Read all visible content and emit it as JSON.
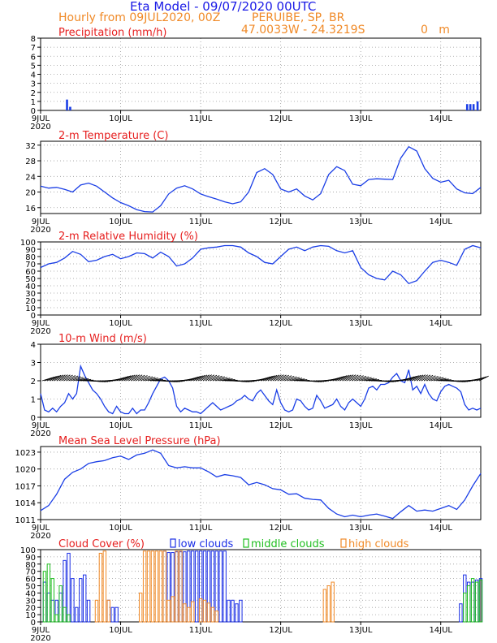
{
  "header": {
    "title": "Eta Model - 09/07/2020 00UTC",
    "subtitle": "Hourly from 09JUL2020, 00Z",
    "location": "PERUIBE, SP, BR",
    "coords": "47.0033W - 24.3219S",
    "elevation": "0   m"
  },
  "colors": {
    "title": "#1a1ae6",
    "subtitle": "#f08a28",
    "panel_title": "#e61e1e",
    "series": "#1a3ee6",
    "low": "#1a2ee6",
    "middle": "#1fbe1f",
    "high": "#f08a28",
    "wind_barb": "#000000"
  },
  "x_axis": {
    "ticks": [
      {
        "day": 0,
        "label": "9JUL",
        "sub": "2020"
      },
      {
        "day": 1,
        "label": "10JUL",
        "sub": ""
      },
      {
        "day": 2,
        "label": "11JUL",
        "sub": ""
      },
      {
        "day": 3,
        "label": "12JUL",
        "sub": ""
      },
      {
        "day": 4,
        "label": "13JUL",
        "sub": ""
      },
      {
        "day": 5,
        "label": "14JUL",
        "sub": ""
      }
    ],
    "range_days": [
      0,
      5.5
    ]
  },
  "chart_data": [
    {
      "type": "bar",
      "title": "Precipitation (mm/h)",
      "ylim": [
        0,
        8
      ],
      "yticks": [
        0,
        1,
        2,
        3,
        4,
        5,
        6,
        7,
        8
      ],
      "series": [
        {
          "x": [
            0.33,
            0.37,
            5.33,
            5.37,
            5.41,
            5.46
          ],
          "values": [
            1.2,
            0.4,
            0.7,
            0.7,
            0.7,
            1.0
          ]
        }
      ]
    },
    {
      "type": "line",
      "title": "2-m Temperature (C)",
      "ylim": [
        14.5,
        33
      ],
      "yticks": [
        16,
        20,
        24,
        28,
        32
      ],
      "series": [
        {
          "x": [
            0,
            0.1,
            0.2,
            0.3,
            0.4,
            0.5,
            0.6,
            0.7,
            0.8,
            0.9,
            1.0,
            1.1,
            1.2,
            1.3,
            1.4,
            1.5,
            1.6,
            1.7,
            1.8,
            1.9,
            2.0,
            2.1,
            2.2,
            2.3,
            2.4,
            2.5,
            2.6,
            2.7,
            2.8,
            2.9,
            3.0,
            3.1,
            3.2,
            3.3,
            3.4,
            3.5,
            3.6,
            3.7,
            3.8,
            3.9,
            4.0,
            4.1,
            4.2,
            4.3,
            4.4,
            4.5,
            4.6,
            4.7,
            4.8,
            4.9,
            5.0,
            5.1,
            5.2,
            5.3,
            5.4,
            5.5
          ],
          "values": [
            21.5,
            21.0,
            21.2,
            20.7,
            20.0,
            21.8,
            22.3,
            21.5,
            20.0,
            18.5,
            17.3,
            16.5,
            15.5,
            15.0,
            14.9,
            16.5,
            19.5,
            21.0,
            21.6,
            20.8,
            19.5,
            18.8,
            18.2,
            17.5,
            17.0,
            17.5,
            20.0,
            25.0,
            26.0,
            24.5,
            20.8,
            20.0,
            20.8,
            19.0,
            18.0,
            19.6,
            24.5,
            26.5,
            25.5,
            22.0,
            21.6,
            23.2,
            23.4,
            23.3,
            23.2,
            28.7,
            31.6,
            30.5,
            26.0,
            23.5,
            22.5,
            23.0,
            20.8,
            19.8,
            19.6,
            21.2
          ]
        }
      ]
    },
    {
      "type": "line",
      "title": "2-m Relative Humidity (%)",
      "ylim": [
        0,
        100
      ],
      "yticks": [
        0,
        10,
        20,
        30,
        40,
        50,
        60,
        70,
        80,
        90,
        100
      ],
      "series": [
        {
          "x": [
            0,
            0.1,
            0.2,
            0.3,
            0.4,
            0.5,
            0.6,
            0.7,
            0.8,
            0.9,
            1.0,
            1.1,
            1.2,
            1.3,
            1.4,
            1.5,
            1.6,
            1.7,
            1.8,
            1.9,
            2.0,
            2.1,
            2.2,
            2.3,
            2.4,
            2.5,
            2.6,
            2.7,
            2.8,
            2.9,
            3.0,
            3.1,
            3.2,
            3.3,
            3.4,
            3.5,
            3.6,
            3.7,
            3.8,
            3.9,
            4.0,
            4.1,
            4.2,
            4.3,
            4.4,
            4.5,
            4.6,
            4.7,
            4.8,
            4.9,
            5.0,
            5.1,
            5.2,
            5.3,
            5.4,
            5.5
          ],
          "values": [
            65,
            70,
            72,
            78,
            87,
            83,
            73,
            75,
            80,
            83,
            77,
            80,
            85,
            84,
            78,
            86,
            80,
            67,
            70,
            78,
            90,
            92,
            93,
            95,
            95,
            93,
            85,
            80,
            72,
            70,
            80,
            90,
            93,
            88,
            93,
            95,
            94,
            88,
            85,
            88,
            65,
            55,
            50,
            48,
            60,
            55,
            43,
            47,
            60,
            72,
            75,
            72,
            68,
            90,
            95,
            92
          ]
        }
      ]
    },
    {
      "type": "line",
      "title": "10-m Wind (m/s)",
      "ylim": [
        0,
        4
      ],
      "yticks": [
        0,
        1,
        2,
        3,
        4
      ],
      "series": [
        {
          "x": [
            0,
            0.05,
            0.1,
            0.15,
            0.2,
            0.25,
            0.3,
            0.35,
            0.4,
            0.45,
            0.5,
            0.55,
            0.6,
            0.65,
            0.7,
            0.75,
            0.8,
            0.85,
            0.9,
            0.95,
            1.0,
            1.05,
            1.1,
            1.15,
            1.2,
            1.25,
            1.3,
            1.35,
            1.4,
            1.45,
            1.5,
            1.55,
            1.6,
            1.65,
            1.7,
            1.75,
            1.8,
            1.85,
            1.9,
            1.95,
            2.0,
            2.05,
            2.1,
            2.15,
            2.2,
            2.25,
            2.3,
            2.35,
            2.4,
            2.45,
            2.5,
            2.55,
            2.6,
            2.65,
            2.7,
            2.75,
            2.8,
            2.85,
            2.9,
            2.95,
            3.0,
            3.05,
            3.1,
            3.15,
            3.2,
            3.25,
            3.3,
            3.35,
            3.4,
            3.45,
            3.5,
            3.55,
            3.6,
            3.65,
            3.7,
            3.75,
            3.8,
            3.85,
            3.9,
            3.95,
            4.0,
            4.05,
            4.1,
            4.15,
            4.2,
            4.25,
            4.3,
            4.35,
            4.4,
            4.45,
            4.5,
            4.55,
            4.6,
            4.65,
            4.7,
            4.75,
            4.8,
            4.85,
            4.9,
            4.95,
            5.0,
            5.05,
            5.1,
            5.15,
            5.2,
            5.25,
            5.3,
            5.35,
            5.4,
            5.45,
            5.5
          ],
          "values": [
            1.3,
            0.4,
            0.3,
            0.5,
            0.3,
            0.6,
            0.8,
            1.3,
            1.0,
            1.3,
            2.8,
            2.3,
            1.9,
            1.5,
            1.3,
            1.0,
            0.6,
            0.3,
            0.2,
            0.6,
            0.3,
            0.2,
            0.2,
            0.5,
            0.2,
            0.4,
            0.4,
            0.8,
            1.3,
            1.7,
            2.1,
            2.2,
            2.0,
            1.6,
            0.6,
            0.3,
            0.5,
            0.4,
            0.3,
            0.3,
            0.2,
            0.4,
            0.6,
            0.8,
            0.6,
            0.4,
            0.5,
            0.6,
            0.7,
            0.9,
            1.0,
            1.2,
            1.0,
            0.9,
            1.3,
            1.5,
            1.2,
            0.9,
            0.7,
            1.5,
            0.8,
            0.4,
            0.3,
            0.4,
            1.0,
            0.9,
            0.6,
            0.4,
            0.5,
            1.2,
            0.9,
            0.5,
            0.6,
            0.7,
            1.0,
            0.6,
            0.4,
            0.8,
            1.0,
            0.8,
            0.6,
            1.0,
            1.6,
            1.7,
            1.5,
            1.8,
            1.8,
            1.9,
            2.2,
            2.4,
            2.0,
            1.9,
            2.6,
            1.5,
            1.7,
            1.3,
            1.8,
            1.3,
            1.0,
            0.9,
            1.4,
            1.7,
            1.8,
            1.7,
            1.6,
            1.4,
            0.7,
            0.4,
            0.5,
            0.4,
            0.5
          ]
        }
      ]
    },
    {
      "type": "line",
      "title": "Mean Sea Level Pressure (hPa)",
      "ylim": [
        1011,
        1024
      ],
      "yticks": [
        1011,
        1014,
        1017,
        1020,
        1023
      ],
      "series": [
        {
          "x": [
            0,
            0.1,
            0.2,
            0.3,
            0.4,
            0.5,
            0.6,
            0.7,
            0.8,
            0.9,
            1.0,
            1.1,
            1.2,
            1.3,
            1.4,
            1.5,
            1.6,
            1.7,
            1.8,
            1.9,
            2.0,
            2.1,
            2.2,
            2.3,
            2.4,
            2.5,
            2.6,
            2.7,
            2.8,
            2.9,
            3.0,
            3.1,
            3.2,
            3.3,
            3.4,
            3.5,
            3.6,
            3.7,
            3.8,
            3.9,
            4.0,
            4.1,
            4.2,
            4.3,
            4.4,
            4.5,
            4.6,
            4.7,
            4.8,
            4.9,
            5.0,
            5.1,
            5.2,
            5.3,
            5.4,
            5.5
          ],
          "values": [
            1012.6,
            1013.5,
            1015.5,
            1018.2,
            1019.4,
            1020.0,
            1021.0,
            1021.3,
            1021.5,
            1022.0,
            1022.3,
            1021.7,
            1022.5,
            1022.8,
            1023.4,
            1022.8,
            1020.6,
            1020.2,
            1020.4,
            1020.2,
            1020.2,
            1019.5,
            1018.6,
            1019.0,
            1018.8,
            1018.5,
            1017.2,
            1017.6,
            1017.2,
            1016.5,
            1016.3,
            1015.5,
            1015.6,
            1014.8,
            1014.6,
            1014.5,
            1013.0,
            1012.0,
            1011.5,
            1011.8,
            1011.5,
            1011.8,
            1012.0,
            1011.6,
            1011.2,
            1012.4,
            1013.5,
            1012.5,
            1012.7,
            1012.5,
            1013.0,
            1013.5,
            1012.8,
            1014.5,
            1017.0,
            1019.2
          ]
        }
      ]
    },
    {
      "type": "bar",
      "title": "Cloud Cover (%)",
      "ylim": [
        0,
        100
      ],
      "yticks": [
        0,
        10,
        20,
        30,
        40,
        50,
        60,
        70,
        80,
        90,
        100
      ],
      "legend": [
        "low clouds",
        "middle clouds",
        "high clouds"
      ],
      "series": [
        {
          "name": "low clouds",
          "x": [
            0.05,
            0.1,
            0.15,
            0.2,
            0.25,
            0.3,
            0.35,
            0.4,
            0.45,
            0.5,
            0.55,
            0.6,
            0.85,
            0.9,
            0.95,
            1.55,
            1.6,
            1.65,
            1.7,
            1.75,
            1.8,
            1.85,
            1.9,
            1.95,
            2.0,
            2.05,
            2.1,
            2.15,
            2.2,
            2.25,
            2.3,
            2.35,
            2.4,
            2.45,
            2.5,
            5.25,
            5.3,
            5.35,
            5.4,
            5.45,
            5.5
          ],
          "values": [
            55,
            40,
            30,
            30,
            40,
            85,
            95,
            60,
            20,
            60,
            65,
            30,
            30,
            20,
            20,
            98,
            96,
            96,
            97,
            97,
            97,
            98,
            98,
            98,
            98,
            98,
            98,
            98,
            98,
            98,
            98,
            30,
            30,
            25,
            30,
            25,
            65,
            55,
            55,
            58,
            60
          ]
        },
        {
          "name": "middle clouds",
          "x": [
            0.05,
            0.1,
            0.15,
            0.2,
            0.25,
            0.3,
            0.35,
            5.3,
            5.35,
            5.4,
            5.45,
            5.5
          ],
          "values": [
            70,
            80,
            60,
            10,
            50,
            20,
            10,
            40,
            50,
            60,
            55,
            58
          ]
        },
        {
          "name": "high clouds",
          "x": [
            0.7,
            0.75,
            0.8,
            0.85,
            1.25,
            1.3,
            1.35,
            1.4,
            1.45,
            1.5,
            1.55,
            1.6,
            1.65,
            1.7,
            1.75,
            1.8,
            1.85,
            1.9,
            2.0,
            2.05,
            2.1,
            2.15,
            2.2,
            3.55,
            3.6,
            3.65
          ],
          "values": [
            30,
            95,
            98,
            30,
            40,
            98,
            98,
            98,
            98,
            98,
            98,
            30,
            35,
            98,
            98,
            25,
            20,
            28,
            32,
            30,
            26,
            20,
            15,
            45,
            50,
            55
          ]
        }
      ]
    }
  ]
}
